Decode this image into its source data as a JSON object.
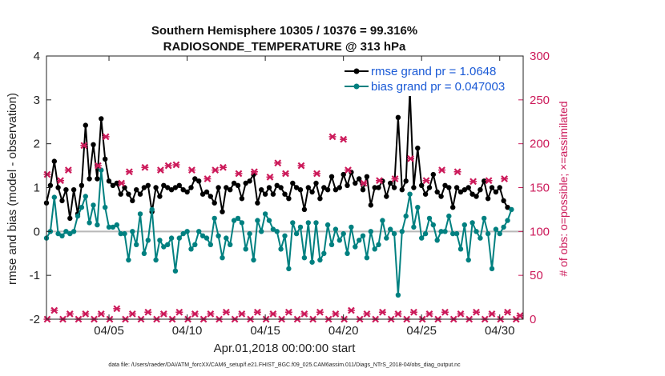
{
  "chart_data": {
    "type": "line",
    "title": "Southern Hemisphere 10305 / 10376 = 99.316%",
    "subtitle": "RADIOSONDE_TEMPERATURE @ 313 hPa",
    "xlabel": "Apr.01,2018 00:00:00 start",
    "ylabel": "rmse and bias (model - observation)",
    "y2label": "# of obs: o=possible; ×=assimilated",
    "footer": "data file: /Users/raeder/DAI/ATM_forcXX/CAM6_setup/f.e21.FHIST_BGC.f09_025.CAM6assim.011/Diags_NTrS_2018-04/obs_diag_output.nc",
    "xlim": [
      1,
      31.5
    ],
    "ylim": [
      -2,
      4
    ],
    "y2lim": [
      0,
      300
    ],
    "x_ticks": [
      5,
      10,
      15,
      20,
      25,
      30
    ],
    "x_tick_labels": [
      "04/05",
      "04/10",
      "04/15",
      "04/20",
      "04/25",
      "04/30"
    ],
    "y_ticks": [
      -2,
      -1,
      0,
      1,
      2,
      3,
      4
    ],
    "y2_ticks": [
      0,
      50,
      100,
      150,
      200,
      250,
      300
    ],
    "x_step_days": 0.25,
    "x_start": 1.0,
    "zero_line": 0,
    "series": [
      {
        "name": "rmse grand pr = 1.0648",
        "color": "#000000",
        "axis": "left",
        "values": [
          0.65,
          1.05,
          1.6,
          1.0,
          0.7,
          0.95,
          0.3,
          0.95,
          0.4,
          1.05,
          2.42,
          1.2,
          1.98,
          1.2,
          2.57,
          1.65,
          1.15,
          1.05,
          1.1,
          0.85,
          1.0,
          0.85,
          0.7,
          0.95,
          0.85,
          1.0,
          1.05,
          0.45,
          1.0,
          0.8,
          1.05,
          1.0,
          0.95,
          1.0,
          1.05,
          0.95,
          0.9,
          1.0,
          1.2,
          1.15,
          0.85,
          0.9,
          0.8,
          0.65,
          1.0,
          0.45,
          1.0,
          0.95,
          1.1,
          1.05,
          0.75,
          1.1,
          1.15,
          1.3,
          0.65,
          0.95,
          0.85,
          1.0,
          0.85,
          1.05,
          1.0,
          0.85,
          0.75,
          1.1,
          1.0,
          0.95,
          0.5,
          1.0,
          0.9,
          1.1,
          0.75,
          1.0,
          0.95,
          1.25,
          0.95,
          1.0,
          1.3,
          1.05,
          1.35,
          1.1,
          1.2,
          0.95,
          1.25,
          0.6,
          1.0,
          1.0,
          1.15,
          0.8,
          1.1,
          1.0,
          2.6,
          0.95,
          1.15,
          3.2,
          1.0,
          1.9,
          1.05,
          0.85,
          1.0,
          1.3,
          0.9,
          0.8,
          1.05,
          1.0,
          0.55,
          1.0,
          0.9,
          0.95,
          1.0,
          0.85,
          0.8,
          0.95,
          1.15,
          0.75,
          1.0,
          0.9,
          1.0,
          0.7,
          0.55
        ]
      },
      {
        "name": "bias grand pr = 0.047003",
        "color": "#008080",
        "axis": "left",
        "values": [
          -0.15,
          0.0,
          0.78,
          -0.05,
          -0.1,
          0.0,
          -0.05,
          0.0,
          0.35,
          0.55,
          0.8,
          0.2,
          0.6,
          0.15,
          1.4,
          0.55,
          0.1,
          0.1,
          0.15,
          -0.05,
          -0.05,
          -0.65,
          0.0,
          -0.3,
          0.4,
          -0.5,
          -0.2,
          0.5,
          -0.65,
          -0.2,
          -0.35,
          -0.3,
          -0.15,
          -0.9,
          -0.15,
          -0.05,
          0.0,
          -0.4,
          -0.3,
          0.0,
          -0.1,
          -0.15,
          -0.3,
          0.3,
          -0.1,
          -0.6,
          -0.15,
          -0.3,
          0.25,
          0.3,
          0.2,
          -0.4,
          -0.05,
          -0.65,
          0.25,
          0.0,
          0.4,
          0.25,
          0.05,
          0.0,
          -0.4,
          -0.1,
          -0.85,
          0.2,
          -0.05,
          0.1,
          -0.6,
          0.2,
          -0.7,
          0.2,
          -0.65,
          -0.5,
          0.15,
          -0.3,
          0.05,
          -0.2,
          -0.05,
          -0.5,
          0.1,
          -0.35,
          -0.2,
          -0.1,
          -0.6,
          0.0,
          -0.4,
          -0.3,
          0.25,
          -0.15,
          0.05,
          -0.05,
          -1.45,
          0.0,
          0.35,
          0.85,
          0.1,
          0.55,
          -0.15,
          -0.05,
          0.3,
          0.15,
          -0.2,
          0.0,
          0.0,
          0.35,
          -0.05,
          -0.05,
          -0.4,
          0.15,
          -0.65,
          0.2,
          0.0,
          -0.15,
          0.3,
          -0.05,
          -0.85,
          0.05,
          -0.05,
          0.1,
          0.25,
          0.5
        ]
      },
      {
        "name": "obs possible/assimilated (upper)",
        "color": "#cc1a5a",
        "axis": "right",
        "marker": "cross",
        "x": [
          1.05,
          1.9,
          2.4,
          3.4,
          4.3,
          4.8,
          5.8,
          6.3,
          7.3,
          8.3,
          8.8,
          9.3,
          10.3,
          11.3,
          11.8,
          12.3,
          13.3,
          14.3,
          15.3,
          15.8,
          16.3,
          17.3,
          18.3,
          19.3,
          20.0,
          20.3,
          21.3,
          22.3,
          23.3,
          24.3,
          25.3,
          26.3,
          27.3,
          28.3,
          29.3,
          30.3
        ],
        "values": [
          165,
          158,
          170,
          198,
          175,
          208,
          155,
          168,
          173,
          170,
          175,
          176,
          170,
          160,
          170,
          173,
          166,
          168,
          162,
          178,
          166,
          175,
          166,
          208,
          205,
          170,
          155,
          158,
          160,
          183,
          158,
          170,
          168,
          157,
          158,
          160
        ]
      },
      {
        "name": "obs possible/assimilated (lower)",
        "color": "#cc1a5a",
        "axis": "right",
        "marker": "cross",
        "x": [
          1.05,
          1.5,
          2.05,
          2.5,
          3.05,
          3.5,
          4.05,
          4.5,
          5.05,
          5.5,
          6.05,
          6.5,
          7.05,
          7.5,
          8.05,
          8.5,
          9.05,
          9.5,
          10.05,
          10.5,
          11.05,
          11.5,
          12.05,
          12.5,
          13.05,
          13.5,
          14.05,
          14.5,
          15.05,
          15.5,
          16.05,
          16.5,
          17.05,
          17.5,
          18.05,
          18.5,
          19.05,
          19.5,
          20.05,
          20.5,
          21.05,
          21.5,
          22.05,
          22.5,
          23.05,
          23.5,
          24.05,
          24.5,
          25.05,
          25.5,
          26.05,
          26.5,
          27.05,
          27.5,
          28.05,
          28.5,
          29.05,
          29.5,
          30.05,
          30.5,
          31.05,
          31.3
        ],
        "values": [
          0,
          10,
          0,
          6,
          0,
          6,
          0,
          6,
          0,
          12,
          0,
          6,
          0,
          8,
          0,
          6,
          0,
          8,
          0,
          6,
          0,
          6,
          0,
          8,
          0,
          6,
          0,
          8,
          0,
          6,
          0,
          8,
          0,
          6,
          0,
          8,
          0,
          6,
          0,
          10,
          0,
          6,
          0,
          8,
          0,
          6,
          0,
          8,
          0,
          6,
          0,
          8,
          0,
          6,
          0,
          8,
          0,
          6,
          0,
          8,
          0,
          4
        ]
      }
    ],
    "legend": [
      "rmse grand pr = 1.0648",
      "bias grand pr = 0.047003"
    ],
    "legend_position": "top-right",
    "grid": false
  }
}
